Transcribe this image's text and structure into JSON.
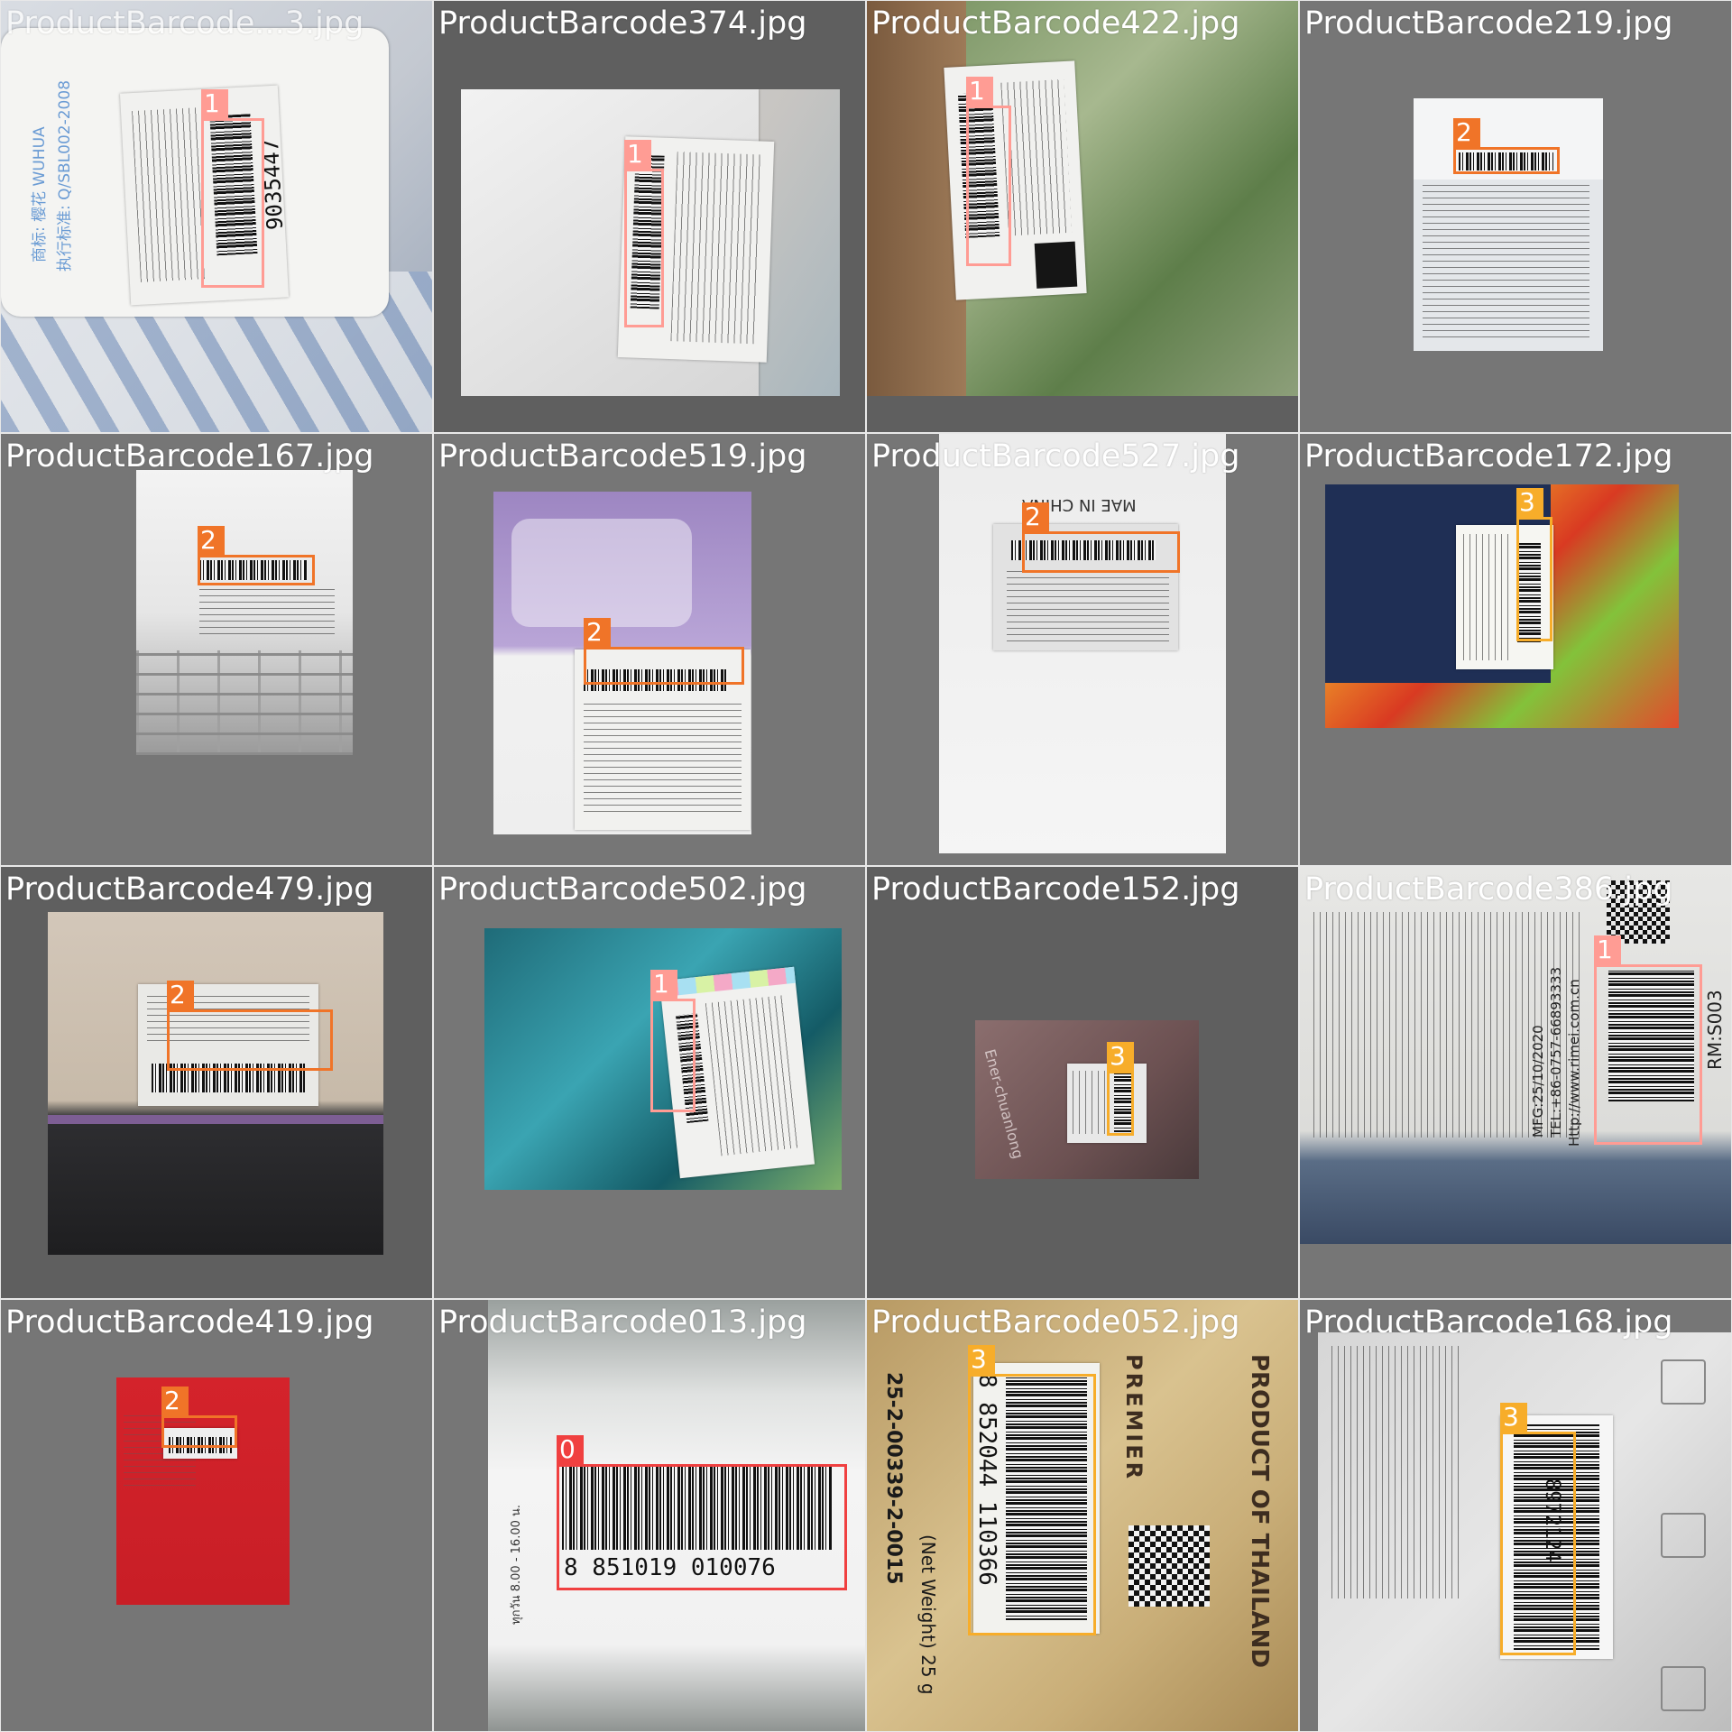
{
  "colors": {
    "class_0": "#f04040",
    "class_1": "#ff9c94",
    "class_2": "#f07428",
    "class_3": "#f7ad2a"
  },
  "tiles": [
    {
      "filename": "ProductBarcode168.jpg",
      "visible_filename": "ProductBarcode...3.jpg",
      "detections": [
        {
          "class_id": "1"
        }
      ]
    },
    {
      "filename": "ProductBarcode374.jpg",
      "detections": [
        {
          "class_id": "1"
        }
      ]
    },
    {
      "filename": "ProductBarcode422.jpg",
      "detections": [
        {
          "class_id": "1"
        }
      ]
    },
    {
      "filename": "ProductBarcode219.jpg",
      "detections": [
        {
          "class_id": "2"
        }
      ]
    },
    {
      "filename": "ProductBarcode167.jpg",
      "detections": [
        {
          "class_id": "2"
        }
      ]
    },
    {
      "filename": "ProductBarcode519.jpg",
      "detections": [
        {
          "class_id": "2"
        }
      ]
    },
    {
      "filename": "ProductBarcode527.jpg",
      "detections": [
        {
          "class_id": "2"
        }
      ]
    },
    {
      "filename": "ProductBarcode172.jpg",
      "detections": [
        {
          "class_id": "3"
        }
      ]
    },
    {
      "filename": "ProductBarcode479.jpg",
      "detections": [
        {
          "class_id": "2"
        }
      ]
    },
    {
      "filename": "ProductBarcode502.jpg",
      "detections": [
        {
          "class_id": "1"
        }
      ]
    },
    {
      "filename": "ProductBarcode152.jpg",
      "detections": [
        {
          "class_id": "3"
        }
      ]
    },
    {
      "filename": "ProductBarcode386.jpg",
      "detections": [
        {
          "class_id": "1"
        }
      ]
    },
    {
      "filename": "ProductBarcode419.jpg",
      "detections": [
        {
          "class_id": "2"
        }
      ]
    },
    {
      "filename": "ProductBarcode013.jpg",
      "detections": [
        {
          "class_id": "0"
        }
      ]
    },
    {
      "filename": "ProductBarcode052.jpg",
      "detections": [
        {
          "class_id": "3"
        }
      ]
    },
    {
      "filename": "ProductBarcode168.jpg",
      "detections": [
        {
          "class_id": "3"
        }
      ]
    }
  ],
  "printed_text": {
    "t1_digits": "9035447",
    "t1_brand": "商标: 樱花 WUHUA",
    "t1_standard": "执行标准: Q/SBL002-2008",
    "t7_made": "MAE IN CHINA",
    "t11_brand": "Ener-chuanlong",
    "t12_code": "RM:S003",
    "t12_mfg": "MFG:25/10/2020",
    "t12_tel": "TEL:+86-0757-66893333",
    "t12_web": "Http://www.rimei.com.cn",
    "t14_digits": "8  851019   010076",
    "t14_hours": "ทุกวัน 8.00 - 16.00 น.",
    "t15_digits": "8 852044 110366",
    "t15_reg": "25-2-00339-2-0015",
    "t15_product": "PRODUCT OF THAILAND",
    "t15_brand": "PREMIER",
    "t15_weight": "(Net Weight) 25 g",
    "t16_digits": "8972124"
  }
}
